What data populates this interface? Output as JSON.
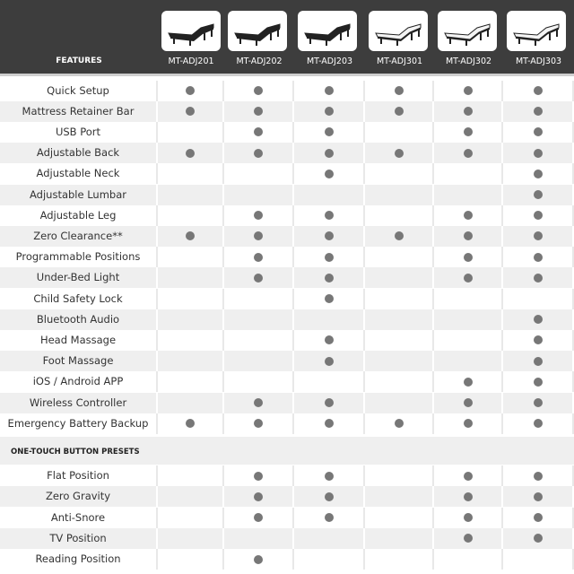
{
  "header": {
    "features_label": "FEATURES"
  },
  "models": [
    {
      "name": "MT-ADJ201",
      "frame": "black"
    },
    {
      "name": "MT-ADJ202",
      "frame": "black"
    },
    {
      "name": "MT-ADJ203",
      "frame": "black"
    },
    {
      "name": "MT-ADJ301",
      "frame": "white"
    },
    {
      "name": "MT-ADJ302",
      "frame": "white"
    },
    {
      "name": "MT-ADJ303",
      "frame": "white"
    }
  ],
  "features": [
    {
      "label": "Quick Setup",
      "has": [
        1,
        1,
        1,
        1,
        1,
        1
      ]
    },
    {
      "label": "Mattress Retainer Bar",
      "has": [
        1,
        1,
        1,
        1,
        1,
        1
      ]
    },
    {
      "label": "USB Port",
      "has": [
        0,
        1,
        1,
        0,
        1,
        1
      ]
    },
    {
      "label": "Adjustable Back",
      "has": [
        1,
        1,
        1,
        1,
        1,
        1
      ]
    },
    {
      "label": "Adjustable Neck",
      "has": [
        0,
        0,
        1,
        0,
        0,
        1
      ]
    },
    {
      "label": "Adjustable Lumbar",
      "has": [
        0,
        0,
        0,
        0,
        0,
        1
      ]
    },
    {
      "label": "Adjustable Leg",
      "has": [
        0,
        1,
        1,
        0,
        1,
        1
      ]
    },
    {
      "label": "Zero Clearance**",
      "has": [
        1,
        1,
        1,
        1,
        1,
        1
      ]
    },
    {
      "label": "Programmable Positions",
      "has": [
        0,
        1,
        1,
        0,
        1,
        1
      ]
    },
    {
      "label": "Under-Bed Light",
      "has": [
        0,
        1,
        1,
        0,
        1,
        1
      ]
    },
    {
      "label": "Child Safety Lock",
      "has": [
        0,
        0,
        1,
        0,
        0,
        0
      ]
    },
    {
      "label": "Bluetooth Audio",
      "has": [
        0,
        0,
        0,
        0,
        0,
        1
      ]
    },
    {
      "label": "Head Massage",
      "has": [
        0,
        0,
        1,
        0,
        0,
        1
      ]
    },
    {
      "label": "Foot Massage",
      "has": [
        0,
        0,
        1,
        0,
        0,
        1
      ]
    },
    {
      "label": "iOS / Android APP",
      "has": [
        0,
        0,
        0,
        0,
        1,
        1
      ]
    },
    {
      "label": "Wireless Controller",
      "has": [
        0,
        1,
        1,
        0,
        1,
        1
      ]
    },
    {
      "label": "Emergency Battery Backup",
      "has": [
        1,
        1,
        1,
        1,
        1,
        1
      ]
    }
  ],
  "presets_section": {
    "label": "ONE-TOUCH BUTTON PRESETS"
  },
  "presets": [
    {
      "label": "Flat Position",
      "has": [
        0,
        1,
        1,
        0,
        1,
        1
      ]
    },
    {
      "label": "Zero Gravity",
      "has": [
        0,
        1,
        1,
        0,
        1,
        1
      ]
    },
    {
      "label": "Anti-Snore",
      "has": [
        0,
        1,
        1,
        0,
        1,
        1
      ]
    },
    {
      "label": "TV Position",
      "has": [
        0,
        0,
        0,
        0,
        1,
        1
      ]
    },
    {
      "label": "Reading Position",
      "has": [
        0,
        1,
        0,
        0,
        0,
        0
      ]
    }
  ],
  "colors": {
    "header_bg": "#3d3d3d",
    "dot": "#777777",
    "alt_row": "#efefef"
  }
}
